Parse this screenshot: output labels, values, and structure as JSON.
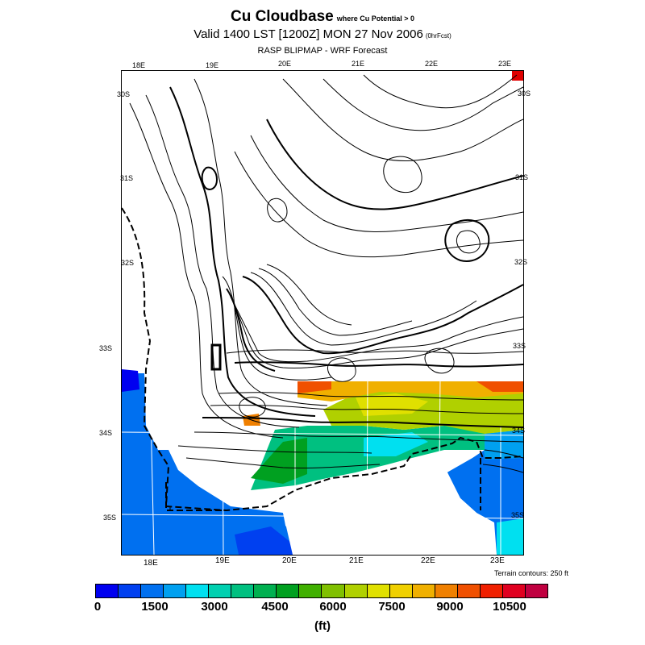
{
  "title": {
    "main": "Cu Cloudbase",
    "qualifier": "where Cu Potential > 0",
    "valid": "Valid 1400 LST [1200Z] MON 27 Nov 2006",
    "forecast_hour": "(0hrFcst)",
    "model": "RASP BLIPMAP - WRF Forecast"
  },
  "map": {
    "top_lon_labels": [
      "18E",
      "19E",
      "20E",
      "21E",
      "22E",
      "23E"
    ],
    "bottom_lon_labels": [
      "18E",
      "19E",
      "20E",
      "21E",
      "22E",
      "23E"
    ],
    "left_lat_labels": [
      "30S",
      "31S",
      "32S",
      "33S",
      "34S",
      "35S"
    ],
    "right_lat_labels": [
      "30S",
      "31S",
      "32S",
      "33S",
      "34S",
      "35S"
    ],
    "terrain_note": "Terrain contours: 250 ft"
  },
  "colorbar": {
    "colors": [
      "#0000f0",
      "#0040f0",
      "#0070f0",
      "#00a0f0",
      "#00e0f0",
      "#00d0b0",
      "#00c080",
      "#00b050",
      "#00a020",
      "#40b000",
      "#80c000",
      "#b0d000",
      "#e0e000",
      "#f0d000",
      "#f0b000",
      "#f08000",
      "#f05000",
      "#f02000",
      "#e00020",
      "#c00040"
    ],
    "tick_labels": [
      "0",
      "1500",
      "3000",
      "4500",
      "6000",
      "7500",
      "9000",
      "10500"
    ],
    "unit": "(ft)"
  }
}
